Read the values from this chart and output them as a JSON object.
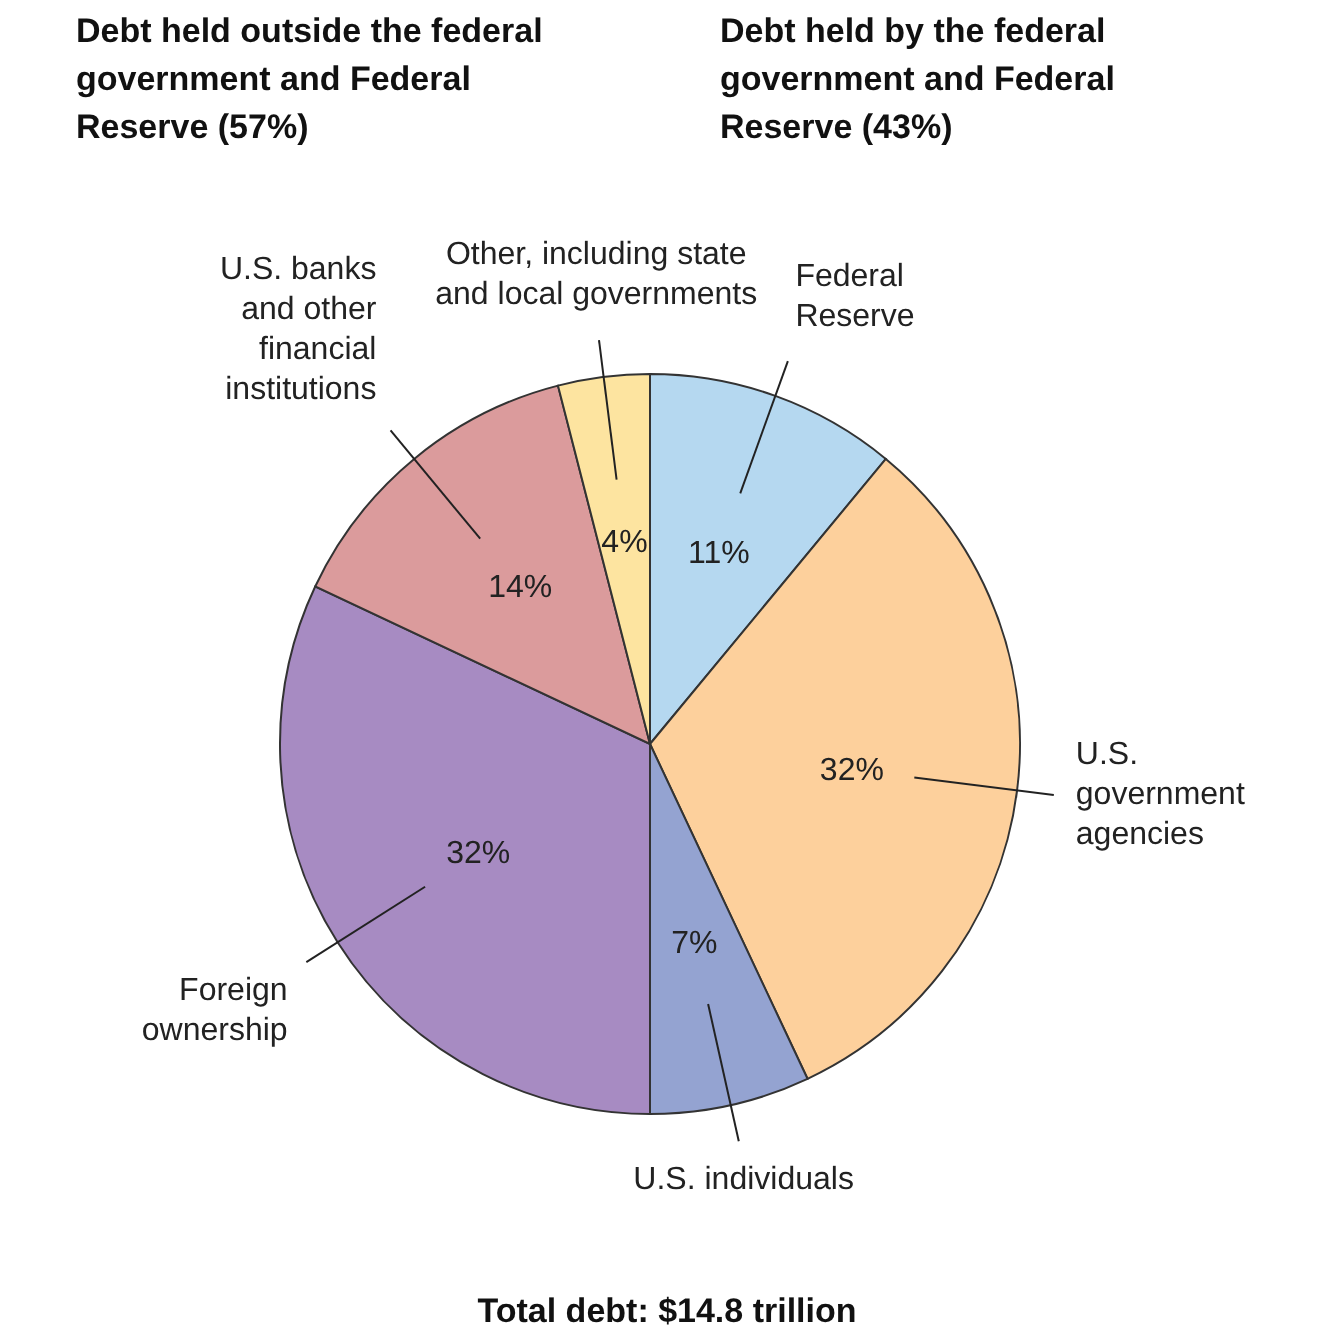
{
  "chart_data": {
    "type": "pie",
    "categories": [
      "Federal Reserve",
      "U.S. government agencies",
      "U.S. individuals",
      "Foreign ownership",
      "U.S. banks and other financial institutions",
      "Other, including state and local governments"
    ],
    "values": [
      11,
      32,
      7,
      32,
      14,
      4
    ],
    "value_labels": [
      "11%",
      "32%",
      "7%",
      "32%",
      "14%",
      "4%"
    ],
    "colors": [
      "#b5d8f0",
      "#fdd09c",
      "#94a3d1",
      "#a78bc2",
      "#db9b9c",
      "#fde4a0"
    ],
    "annotations": [
      "Debt held outside the federal government and Federal Reserve (57%)",
      "Debt held by the federal government and Federal Reserve (43%)",
      "Total debt: $14.8 trillion"
    ]
  }
}
